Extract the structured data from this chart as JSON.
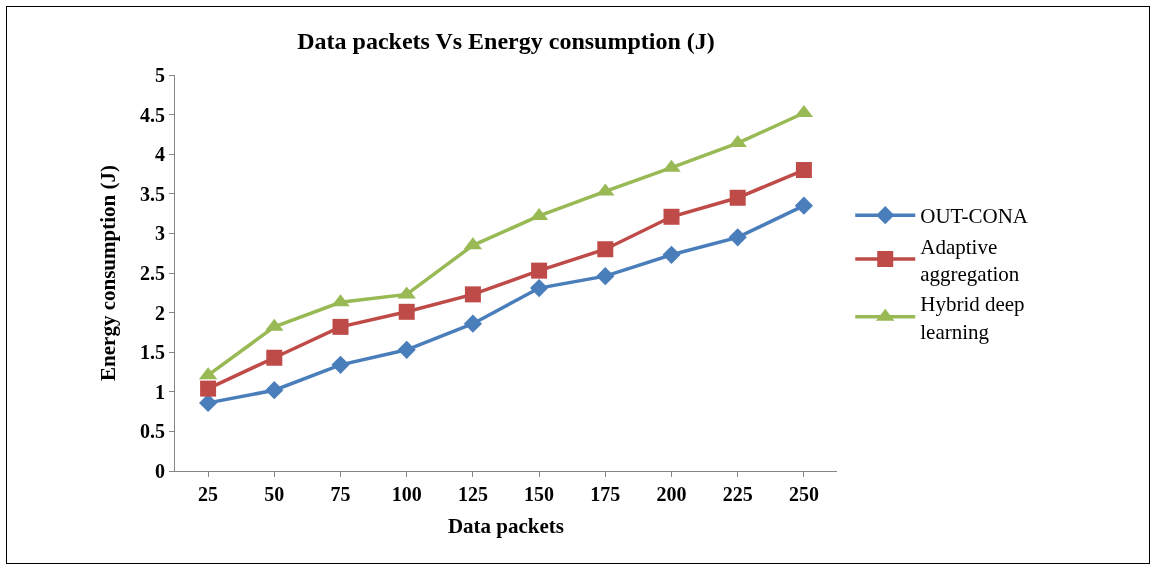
{
  "chart_data": {
    "type": "line",
    "title": "Data packets Vs Energy consumption (J)",
    "xlabel": "Data packets",
    "ylabel": "Energy consumption (J)",
    "categories": [
      "25",
      "50",
      "75",
      "100",
      "125",
      "150",
      "175",
      "200",
      "225",
      "250"
    ],
    "ylim": [
      0,
      5
    ],
    "yticks": [
      0,
      0.5,
      1,
      1.5,
      2,
      2.5,
      3,
      3.5,
      4,
      4.5,
      5
    ],
    "grid": false,
    "legend": "right",
    "line_style": "solid",
    "series": [
      {
        "name": "OUT-CONA",
        "color": "#4a7ebb",
        "marker": "diamond",
        "values": [
          0.86,
          1.02,
          1.34,
          1.53,
          1.86,
          2.31,
          2.46,
          2.73,
          2.95,
          3.35
        ]
      },
      {
        "name": "Adaptive aggregation",
        "color": "#be4b48",
        "marker": "square",
        "values": [
          1.04,
          1.43,
          1.82,
          2.01,
          2.23,
          2.53,
          2.8,
          3.21,
          3.45,
          3.8
        ]
      },
      {
        "name": "Hybrid deep learning",
        "color": "#98b954",
        "marker": "triangle",
        "values": [
          1.21,
          1.82,
          2.13,
          2.23,
          2.85,
          3.22,
          3.53,
          3.83,
          4.14,
          4.52
        ]
      }
    ]
  }
}
